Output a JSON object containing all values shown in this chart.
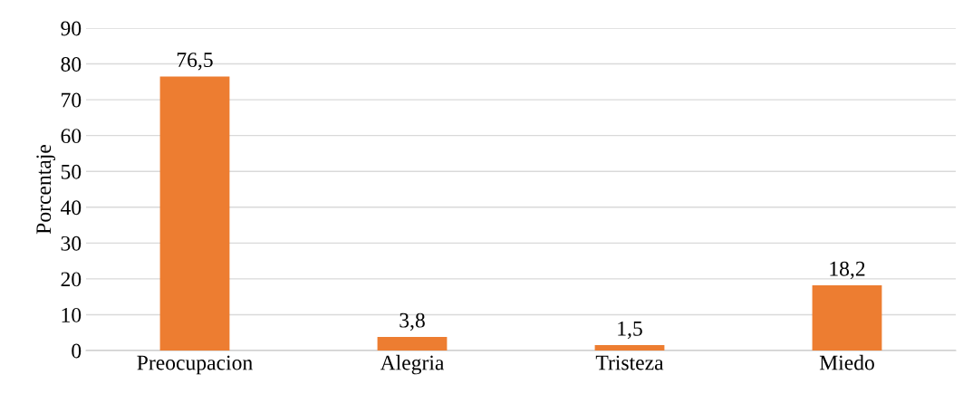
{
  "chart_data": {
    "type": "bar",
    "ylabel": "Porcentaje",
    "categories": [
      "Preocupacion",
      "Alegria",
      "Tristeza",
      "Miedo"
    ],
    "values": [
      76.5,
      3.8,
      1.5,
      18.2
    ],
    "value_labels": [
      "76,5",
      "3,8",
      "1,5",
      "18,2"
    ],
    "color": "#ed7d31",
    "ylim": [
      0,
      90
    ],
    "yticks": [
      0,
      10,
      20,
      30,
      40,
      50,
      60,
      70,
      80,
      90
    ],
    "grid": "y"
  }
}
